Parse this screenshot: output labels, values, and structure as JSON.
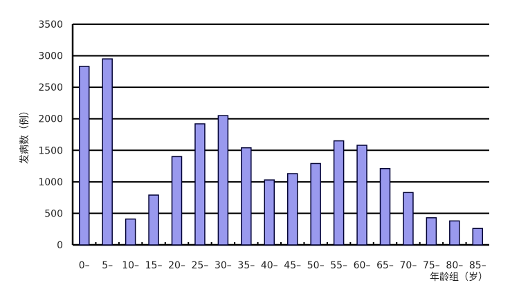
{
  "chart_data": {
    "type": "bar",
    "title": "",
    "xlabel": "年龄组（岁）",
    "ylabel": "发病数（例）",
    "ylim": [
      0,
      3500
    ],
    "yticks": [
      0,
      500,
      1000,
      1500,
      2000,
      2500,
      3000,
      3500
    ],
    "grid": true,
    "categories": [
      "0-",
      "5-",
      "10-",
      "15-",
      "20-",
      "25-",
      "30-",
      "35-",
      "40-",
      "45-",
      "50-",
      "55-",
      "60-",
      "65-",
      "70-",
      "75-",
      "80-",
      "85-"
    ],
    "values": [
      2830,
      2950,
      410,
      790,
      1400,
      1920,
      2050,
      1540,
      1030,
      1130,
      1290,
      1650,
      1580,
      1210,
      830,
      430,
      380,
      260
    ],
    "colors": {
      "bar": "#9999ee",
      "bar_edge": "#000033",
      "grid": "#000000"
    }
  }
}
